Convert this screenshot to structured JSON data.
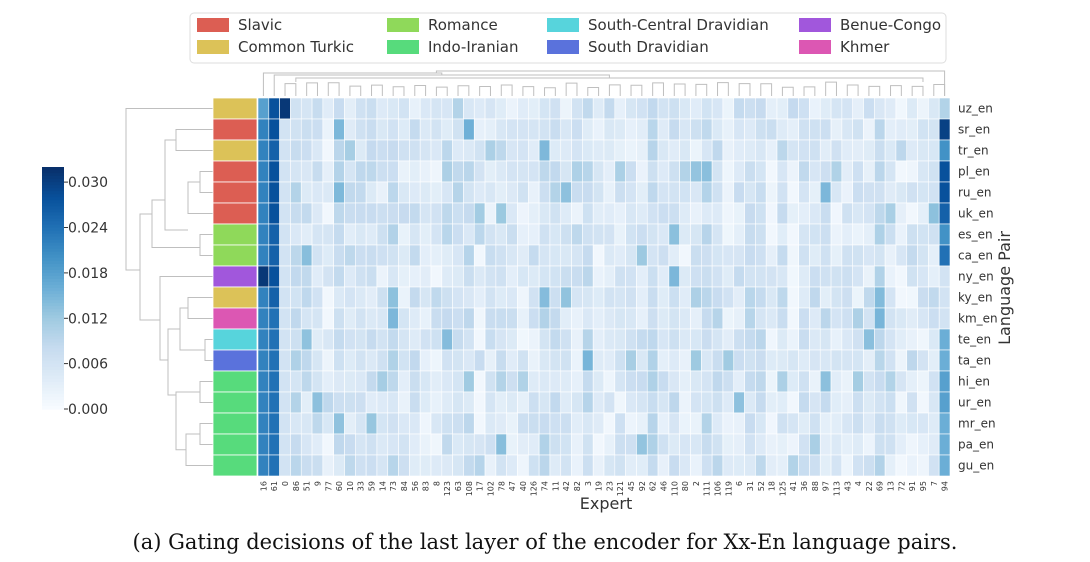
{
  "chart_data": {
    "type": "heatmap",
    "title": "",
    "xlabel": "Expert",
    "ylabel": "Language Pair",
    "caption": "(a) Gating decisions of the last layer of the encoder for Xx-En language pairs.",
    "rows": [
      "uz_en",
      "sr_en",
      "tr_en",
      "pl_en",
      "ru_en",
      "uk_en",
      "es_en",
      "ca_en",
      "ny_en",
      "ky_en",
      "km_en",
      "te_en",
      "ta_en",
      "hi_en",
      "ur_en",
      "mr_en",
      "pa_en",
      "gu_en"
    ],
    "row_families": [
      "Common Turkic",
      "Slavic",
      "Common Turkic",
      "Slavic",
      "Slavic",
      "Slavic",
      "Romance",
      "Romance",
      "Benue-Congo",
      "Common Turkic",
      "Khmer",
      "South-Central Dravidian",
      "South Dravidian",
      "Indo-Iranian",
      "Indo-Iranian",
      "Indo-Iranian",
      "Indo-Iranian",
      "Indo-Iranian"
    ],
    "x_tick_labels": [
      "16",
      "61",
      "0",
      "86",
      "51",
      "9",
      "77",
      "60",
      "10",
      "33",
      "59",
      "14",
      "73",
      "84",
      "56",
      "83",
      "8",
      "123",
      "63",
      "108",
      "17",
      "102",
      "78",
      "47",
      "40",
      "126",
      "74",
      "11",
      "42",
      "82",
      "3",
      "19",
      "23",
      "121",
      "45",
      "92",
      "62",
      "46",
      "110",
      "80",
      "2",
      "111",
      "106",
      "119",
      "6",
      "31",
      "52",
      "18",
      "125",
      "41",
      "36",
      "88",
      "97",
      "113",
      "43",
      "4",
      "22",
      "69",
      "13",
      "72",
      "91",
      "95",
      "7",
      "94"
    ],
    "colorbar": {
      "ticks": [
        "0.000",
        "0.006",
        "0.012",
        "0.018",
        "0.024",
        "0.030"
      ],
      "min": 0.0,
      "max": 0.032
    },
    "legend": [
      {
        "name": "Slavic",
        "color": "#dc5e53"
      },
      {
        "name": "Common Turkic",
        "color": "#dcc258"
      },
      {
        "name": "Romance",
        "color": "#8fd95a"
      },
      {
        "name": "Indo-Iranian",
        "color": "#57db7c"
      },
      {
        "name": "South-Central Dravidian",
        "color": "#57d4dc"
      },
      {
        "name": "South Dravidian",
        "color": "#5a72dc"
      },
      {
        "name": "Benue-Congo",
        "color": "#a157dc"
      },
      {
        "name": "Khmer",
        "color": "#dc57b3"
      }
    ],
    "first_columns_values": {
      "16": [
        0.018,
        0.022,
        0.022,
        0.022,
        0.022,
        0.022,
        0.022,
        0.022,
        0.031,
        0.022,
        0.022,
        0.022,
        0.022,
        0.022,
        0.022,
        0.022,
        0.022,
        0.022
      ],
      "61": [
        0.028,
        0.028,
        0.026,
        0.028,
        0.028,
        0.028,
        0.026,
        0.026,
        0.028,
        0.026,
        0.024,
        0.024,
        0.024,
        0.024,
        0.024,
        0.024,
        0.024,
        0.024
      ],
      "0": [
        0.031,
        0.006,
        0.006,
        0.006,
        0.006,
        0.006,
        0.006,
        0.006,
        0.006,
        0.006,
        0.006,
        0.006,
        0.006,
        0.006,
        0.006,
        0.006,
        0.006,
        0.006
      ],
      "94": [
        0.01,
        0.03,
        0.02,
        0.028,
        0.028,
        0.026,
        0.02,
        0.024,
        0.006,
        0.006,
        0.006,
        0.016,
        0.016,
        0.018,
        0.018,
        0.016,
        0.016,
        0.016
      ]
    },
    "typical_cell_value_range": [
      0.002,
      0.012
    ]
  }
}
